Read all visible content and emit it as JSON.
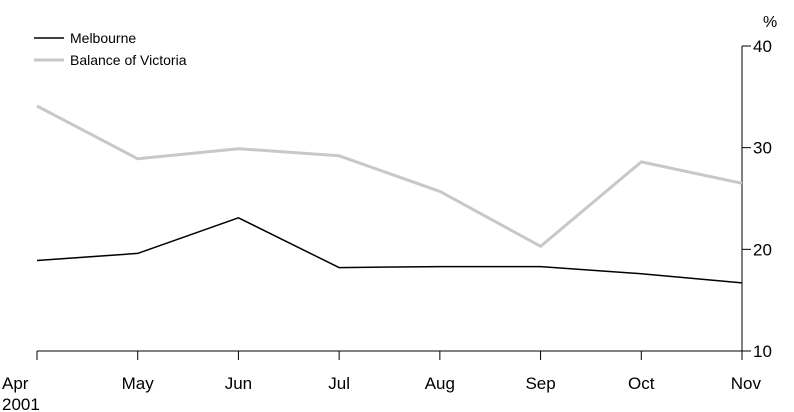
{
  "chart_data": {
    "type": "line",
    "x": [
      "Apr",
      "May",
      "Jun",
      "Jul",
      "Aug",
      "Sep",
      "Oct",
      "Nov"
    ],
    "x_year_label": "2001",
    "y_unit": "%",
    "ylim": [
      10,
      40
    ],
    "yticks": [
      10,
      20,
      30,
      40
    ],
    "axis_side": "right",
    "grid": false,
    "legend_position": "top-left",
    "series": [
      {
        "name": "Melbourne",
        "color": "#000000",
        "values": [
          18.9,
          19.6,
          23.1,
          18.2,
          18.3,
          18.3,
          17.6,
          16.7
        ]
      },
      {
        "name": "Balance of Victoria",
        "color": "#c8c8c8",
        "values": [
          34.1,
          28.9,
          29.9,
          29.2,
          25.7,
          20.3,
          28.6,
          26.5
        ]
      }
    ]
  }
}
